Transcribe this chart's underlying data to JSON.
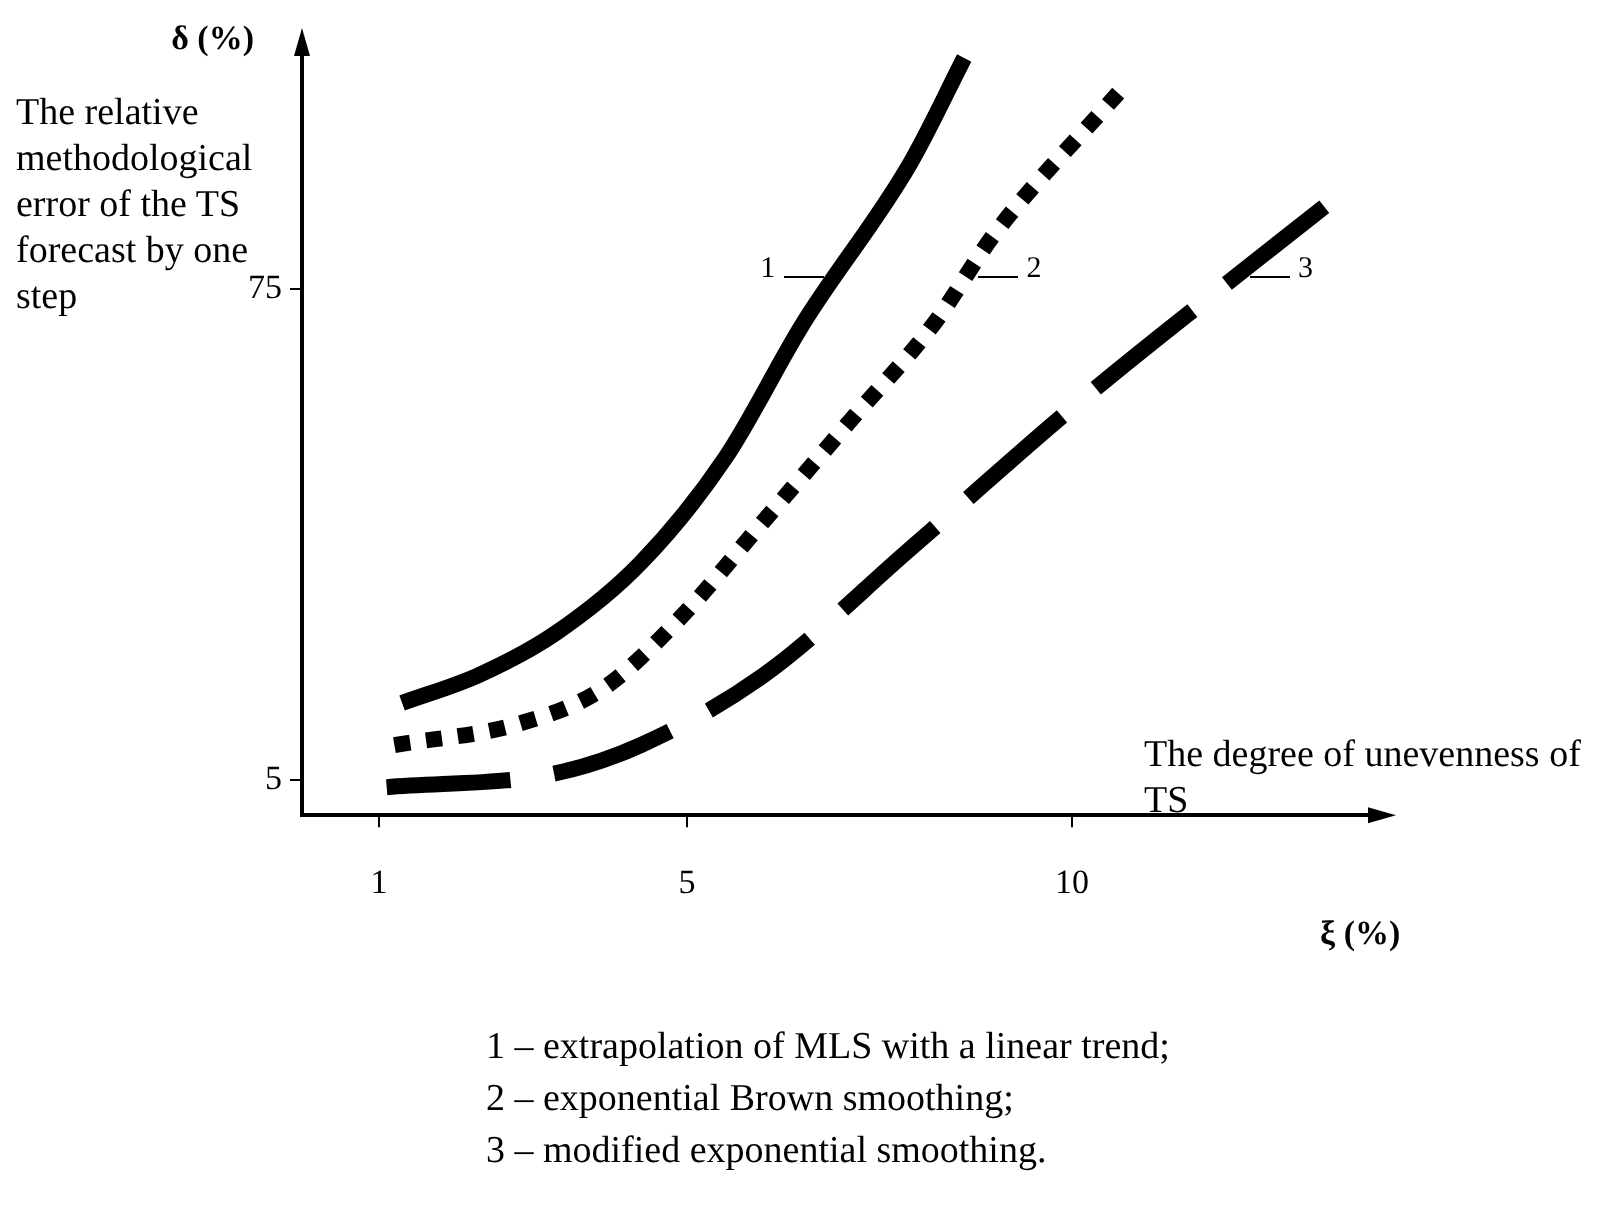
{
  "chart_data": {
    "type": "line",
    "xlabel": "ξ (%)",
    "ylabel": "δ (%)",
    "xlim": [
      0,
      14
    ],
    "ylim": [
      0,
      110
    ],
    "xticks": [
      1,
      5,
      10
    ],
    "yticks": [
      5,
      75
    ],
    "legend": "top",
    "marker": "none",
    "series": [
      {
        "name": "1",
        "color": "#000000",
        "line_style": "solid",
        "x": [
          1.3,
          2.3,
          3.3,
          4.4,
          5.5,
          6.5,
          7.9,
          8.6
        ],
        "values": [
          16,
          20,
          26,
          36,
          51,
          70,
          93,
          108
        ]
      },
      {
        "name": "2",
        "color": "#000000",
        "line_style": "dotted",
        "x": [
          1.2,
          2.8,
          3.9,
          4.9,
          6.0,
          7.1,
          8.2,
          9.0,
          10.6
        ],
        "values": [
          10,
          13,
          18,
          28,
          42,
          56,
          70,
          83,
          103
        ]
      },
      {
        "name": "3",
        "color": "#000000",
        "line_style": "dashed",
        "x": [
          1.1,
          3.3,
          4.4,
          6.0,
          7.9,
          10.1,
          13.3
        ],
        "values": [
          4,
          6,
          10,
          20,
          38,
          59,
          87
        ]
      }
    ],
    "annotations": [
      "The relative methodological error of the TS forecast by one step",
      "The degree of unevenness of TS",
      "1 – extrapolation of MLS with a linear trend;",
      "2 – exponential Brown smoothing;",
      "3 – modified exponential smoothing."
    ]
  }
}
